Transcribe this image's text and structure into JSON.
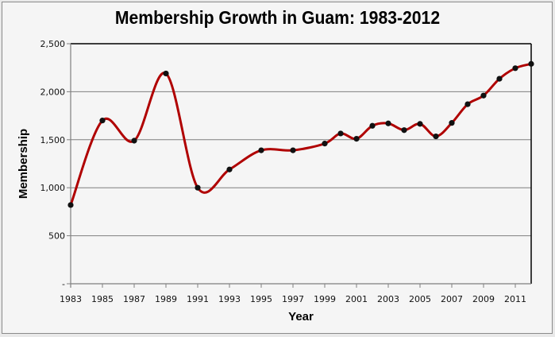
{
  "chart_data": {
    "type": "line",
    "title": "Membership Growth in Guam: 1983-2012",
    "xlabel": "Year",
    "ylabel": "Membership",
    "ylim": [
      0,
      2500
    ],
    "yticks": [
      0,
      500,
      1000,
      1500,
      2000,
      2500
    ],
    "ytick_labels": [
      "-",
      "500",
      "1,000",
      "1,500",
      "2,000",
      "2,500"
    ],
    "xtick_labels": [
      "1983",
      "1985",
      "1987",
      "1989",
      "1991",
      "1993",
      "1995",
      "1997",
      "1999",
      "2001",
      "2003",
      "2005",
      "2007",
      "2009",
      "2011"
    ],
    "grid": "horizontal",
    "legend": "none",
    "smoothed": true,
    "x": [
      1983,
      1985,
      1987,
      1989,
      1991,
      1993,
      1995,
      1997,
      1999,
      2000,
      2001,
      2002,
      2003,
      2004,
      2005,
      2006,
      2007,
      2008,
      2009,
      2010,
      2011,
      2012
    ],
    "series": [
      {
        "name": "Membership",
        "color": "#b00000",
        "values": [
          820,
          1700,
          1490,
          2190,
          1000,
          1190,
          1390,
          1390,
          1460,
          1565,
          1510,
          1645,
          1670,
          1600,
          1665,
          1535,
          1675,
          1870,
          1960,
          2135,
          2245,
          2290
        ]
      }
    ]
  }
}
